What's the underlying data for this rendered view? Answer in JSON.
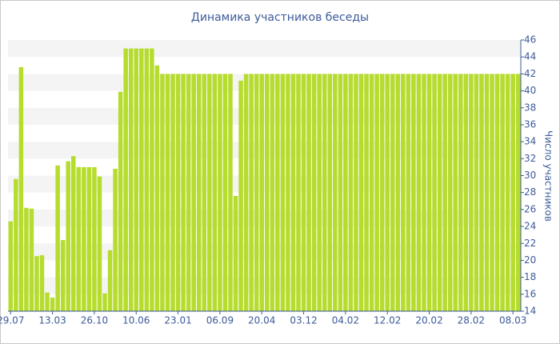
{
  "chart_data": {
    "type": "bar",
    "title": "Динамика участников беседы",
    "y_label": "Число участников",
    "categories": [
      "29.07",
      null,
      null,
      null,
      null,
      null,
      null,
      null,
      "13.03",
      null,
      null,
      null,
      null,
      null,
      null,
      null,
      "26.10",
      null,
      null,
      null,
      null,
      null,
      null,
      null,
      "10.06",
      null,
      null,
      null,
      null,
      null,
      null,
      null,
      "23.01",
      null,
      null,
      null,
      null,
      null,
      null,
      null,
      "06.09",
      null,
      null,
      null,
      null,
      null,
      null,
      null,
      "20.04",
      null,
      null,
      null,
      null,
      null,
      null,
      null,
      "03.12",
      null,
      null,
      null,
      null,
      null,
      null,
      null,
      "04.02",
      null,
      null,
      null,
      null,
      null,
      null,
      null,
      "12.02",
      null,
      null,
      null,
      null,
      null,
      null,
      null,
      "20.02",
      null,
      null,
      null,
      null,
      null,
      null,
      null,
      "28.02",
      null,
      null,
      null,
      null,
      null,
      null,
      null,
      "08.03",
      null
    ],
    "values": [
      24.6,
      29.6,
      42.8,
      26.2,
      26.1,
      20.5,
      20.6,
      16.2,
      15.6,
      31.2,
      22.4,
      31.7,
      32.3,
      31,
      31,
      31,
      31,
      29.9,
      16.1,
      21.2,
      30.8,
      39.9,
      45,
      45,
      45,
      45,
      45,
      45,
      43,
      42,
      42,
      42,
      42,
      42,
      42,
      42,
      42,
      42,
      42,
      42,
      42,
      42,
      42,
      27.6,
      41.2,
      42,
      42,
      42,
      42,
      42,
      42,
      42,
      42,
      42,
      42,
      42,
      42,
      42,
      42,
      42,
      42,
      42,
      42,
      42,
      42,
      42,
      42,
      42,
      42,
      42,
      42,
      42,
      42,
      42,
      42,
      42,
      42,
      42,
      42,
      42,
      42,
      42,
      42,
      42,
      42,
      42,
      42,
      42,
      42,
      42,
      42,
      42,
      42,
      42,
      42,
      42,
      42,
      42
    ],
    "color": "#b6dc2e",
    "ylim": [
      14,
      46
    ],
    "yticks": [
      14,
      16,
      18,
      20,
      22,
      24,
      26,
      28,
      30,
      32,
      34,
      36,
      38,
      40,
      42,
      44,
      46
    ],
    "grid": true
  }
}
